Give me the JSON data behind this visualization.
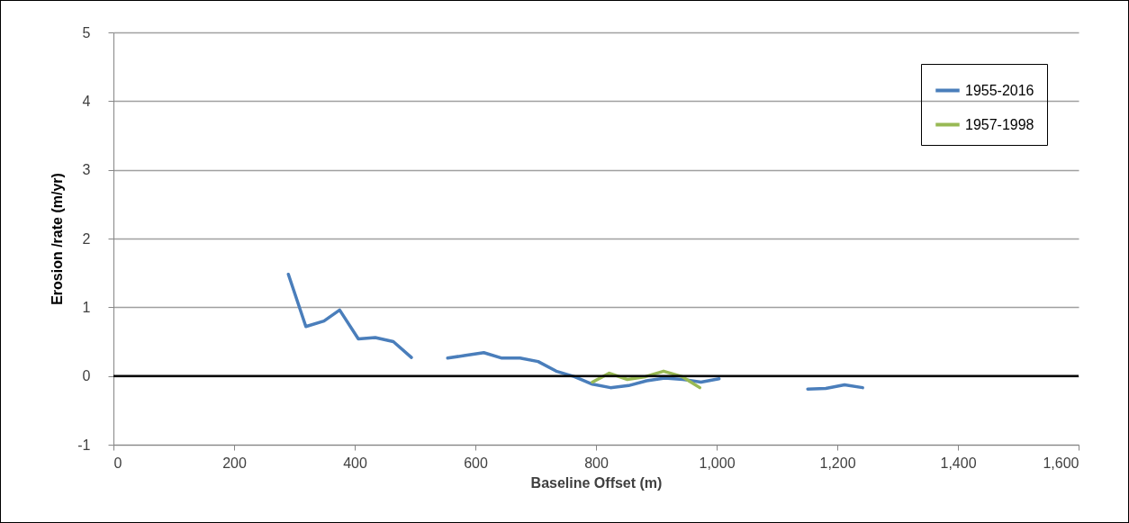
{
  "chart_data": {
    "type": "line",
    "xlabel": "Baseline Offset (m)",
    "ylabel": "Erosion /rate (m/yr)",
    "xlim": [
      0,
      1600
    ],
    "xticks": [
      0,
      200,
      400,
      600,
      800,
      {
        "value": 1000,
        "label": "1,000"
      },
      {
        "value": 1200,
        "label": "1,200"
      },
      {
        "value": 1400,
        "label": "1,400"
      },
      {
        "value": 1600,
        "label": "1,600"
      }
    ],
    "ylim": [
      -1,
      5
    ],
    "yticks": [
      -1,
      0,
      1,
      2,
      3,
      4,
      5
    ],
    "grid": "y",
    "legend": "top right",
    "line_style": "solid",
    "ref_lines": [
      {
        "axis": "y",
        "value": 0,
        "color": "#000000"
      }
    ],
    "series": [
      {
        "name": "1955-2016",
        "color": "#4a7ebb",
        "x": [
          290,
          319,
          349,
          375,
          406,
          434,
          464,
          494,
          524,
          554,
          584,
          614,
          644,
          674,
          704,
          734,
          764,
          794,
          824,
          854,
          884,
          914,
          944,
          974,
          1004,
          1080,
          1151,
          1181,
          1212,
          1242
        ],
        "values": [
          1.48,
          0.72,
          0.8,
          0.96,
          0.54,
          0.56,
          0.5,
          0.27,
          null,
          0.26,
          0.3,
          0.34,
          0.26,
          0.26,
          0.21,
          0.07,
          -0.01,
          -0.12,
          -0.17,
          -0.14,
          -0.07,
          -0.03,
          -0.05,
          -0.09,
          -0.04,
          null,
          -0.19,
          -0.18,
          -0.13,
          -0.17
        ]
      },
      {
        "name": "1957-1998",
        "color": "#98b954",
        "x": [
          794,
          822,
          852,
          882,
          912,
          943,
          972
        ],
        "values": [
          -0.09,
          0.04,
          -0.05,
          -0.01,
          0.07,
          -0.01,
          -0.17
        ]
      }
    ]
  }
}
